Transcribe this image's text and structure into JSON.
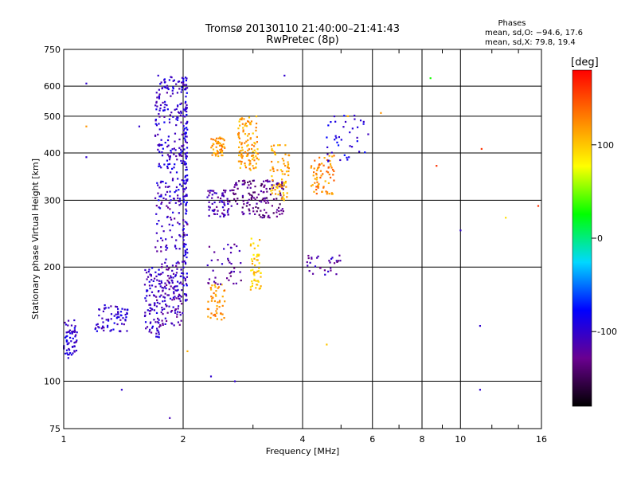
{
  "chart_data": {
    "type": "scatter",
    "title": "Tromsø 20130110 21:40:00–21:41:43",
    "subtitle": "RwPretec (8p)",
    "xlabel": "Frequency [MHz]",
    "ylabel": "Stationary phase Virtual Height [km]",
    "xscale": "log",
    "yscale": "log",
    "xlim": [
      1,
      16
    ],
    "ylim": [
      75,
      750
    ],
    "x_ticks": [
      1,
      2,
      4,
      6,
      8,
      10,
      16
    ],
    "y_ticks": [
      75,
      100,
      200,
      300,
      400,
      500,
      600,
      750
    ],
    "grid": true,
    "stats_title": "Phases",
    "stats": [
      "mean, sd,O: −94.6, 17.6",
      "mean, sd,X:  79.8, 19.4"
    ],
    "colorbar": {
      "label": "[deg]",
      "range": [
        -180,
        180
      ],
      "ticks": [
        100,
        0,
        -100
      ],
      "colors": [
        "#000000",
        "#6a0090",
        "#0000ff",
        "#00d8ff",
        "#00ff00",
        "#ffff00",
        "#ff8000",
        "#ff0000"
      ]
    },
    "clusters": [
      {
        "x": [
          1.0,
          1.08
        ],
        "y": [
          115,
          145
        ],
        "phase": -100,
        "n": 60
      },
      {
        "x": [
          1.2,
          1.45
        ],
        "y": [
          135,
          160
        ],
        "phase": -100,
        "n": 70
      },
      {
        "x": [
          1.6,
          1.75
        ],
        "y": [
          130,
          200
        ],
        "phase": -105,
        "n": 90
      },
      {
        "x": [
          1.75,
          2.0
        ],
        "y": [
          140,
          210
        ],
        "phase": -110,
        "n": 130
      },
      {
        "x": [
          1.7,
          2.05
        ],
        "y": [
          300,
          640
        ],
        "phase": -100,
        "n": 220
      },
      {
        "x": [
          2.0,
          2.05
        ],
        "y": [
          160,
          640
        ],
        "phase": -95,
        "n": 120
      },
      {
        "x": [
          1.7,
          2.05
        ],
        "y": [
          220,
          300
        ],
        "phase": -110,
        "n": 60
      },
      {
        "x": [
          2.3,
          2.6
        ],
        "y": [
          270,
          320
        ],
        "phase": -115,
        "n": 60
      },
      {
        "x": [
          2.6,
          3.6
        ],
        "y": [
          270,
          340
        ],
        "phase": -130,
        "n": 150
      },
      {
        "x": [
          2.35,
          2.55
        ],
        "y": [
          390,
          440
        ],
        "phase": 120,
        "n": 50
      },
      {
        "x": [
          2.75,
          3.1
        ],
        "y": [
          360,
          500
        ],
        "phase": 115,
        "n": 110
      },
      {
        "x": [
          3.3,
          3.7
        ],
        "y": [
          300,
          420
        ],
        "phase": 110,
        "n": 70
      },
      {
        "x": [
          2.3,
          2.55
        ],
        "y": [
          145,
          180
        ],
        "phase": 120,
        "n": 45
      },
      {
        "x": [
          2.95,
          3.15
        ],
        "y": [
          170,
          240
        ],
        "phase": 100,
        "n": 50
      },
      {
        "x": [
          2.3,
          2.8
        ],
        "y": [
          180,
          230
        ],
        "phase": -120,
        "n": 40
      },
      {
        "x": [
          4.2,
          4.8
        ],
        "y": [
          310,
          400
        ],
        "phase": 125,
        "n": 70
      },
      {
        "x": [
          4.1,
          5.0
        ],
        "y": [
          190,
          215
        ],
        "phase": -115,
        "n": 30
      },
      {
        "x": [
          4.6,
          5.9
        ],
        "y": [
          380,
          510
        ],
        "phase": -90,
        "n": 40
      }
    ],
    "isolated_points": [
      {
        "x": 1.14,
        "y": 390,
        "phase": -100
      },
      {
        "x": 1.14,
        "y": 470,
        "phase": 120
      },
      {
        "x": 1.14,
        "y": 610,
        "phase": -100
      },
      {
        "x": 1.55,
        "y": 470,
        "phase": -100
      },
      {
        "x": 1.73,
        "y": 640,
        "phase": -100
      },
      {
        "x": 2.05,
        "y": 120,
        "phase": 110
      },
      {
        "x": 2.35,
        "y": 103,
        "phase": -100
      },
      {
        "x": 2.7,
        "y": 100,
        "phase": -100
      },
      {
        "x": 3.6,
        "y": 640,
        "phase": -100
      },
      {
        "x": 4.6,
        "y": 125,
        "phase": 100
      },
      {
        "x": 5.2,
        "y": 500,
        "phase": 110
      },
      {
        "x": 6.3,
        "y": 510,
        "phase": 120
      },
      {
        "x": 8.4,
        "y": 630,
        "phase": 30
      },
      {
        "x": 8.7,
        "y": 370,
        "phase": 160
      },
      {
        "x": 10.0,
        "y": 250,
        "phase": -100
      },
      {
        "x": 11.3,
        "y": 410,
        "phase": 160
      },
      {
        "x": 11.2,
        "y": 95,
        "phase": -100
      },
      {
        "x": 11.2,
        "y": 140,
        "phase": -100
      },
      {
        "x": 13.0,
        "y": 270,
        "phase": 90
      },
      {
        "x": 15.7,
        "y": 290,
        "phase": 160
      },
      {
        "x": 1.85,
        "y": 80,
        "phase": -110
      },
      {
        "x": 1.4,
        "y": 95,
        "phase": -100
      }
    ]
  }
}
